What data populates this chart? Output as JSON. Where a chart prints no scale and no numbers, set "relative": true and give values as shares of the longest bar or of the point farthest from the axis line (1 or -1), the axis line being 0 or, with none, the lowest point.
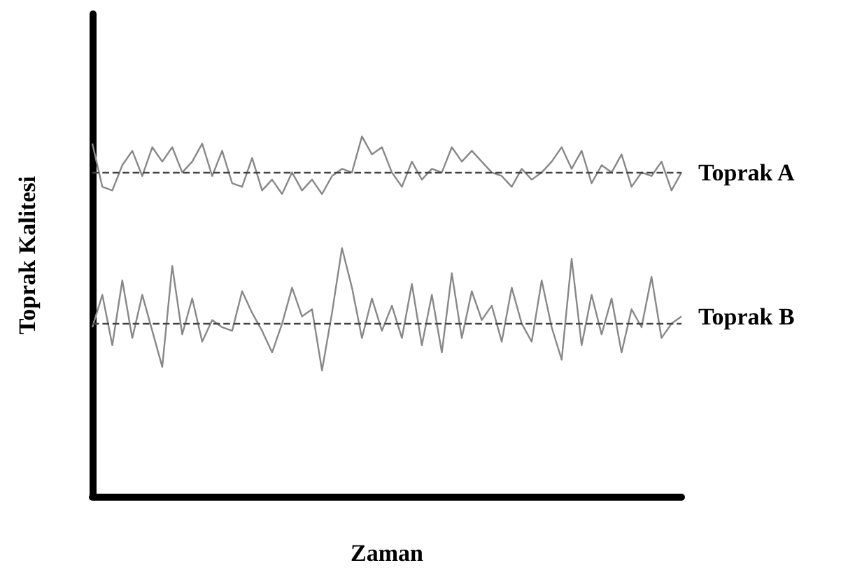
{
  "chart_data": {
    "type": "line",
    "relative": true,
    "xlabel": "Zaman",
    "ylabel": "Toprak Kalitesi",
    "categories": [
      null,
      null,
      null,
      null,
      null,
      null,
      null,
      null,
      null,
      null,
      null,
      null,
      null,
      null,
      null,
      null,
      null,
      null,
      null,
      null,
      null,
      null,
      null,
      null,
      null,
      null,
      null,
      null,
      null,
      null,
      null,
      null,
      null,
      null,
      null,
      null,
      null,
      null,
      null,
      null,
      null,
      null,
      null,
      null,
      null,
      null,
      null,
      null,
      null,
      null,
      null,
      null,
      null,
      null,
      null,
      null,
      null,
      null,
      null,
      null
    ],
    "series": [
      {
        "name": "Toprak A",
        "color": "#888888",
        "values": [
          0.98,
          0.86,
          0.85,
          0.92,
          0.96,
          0.89,
          0.97,
          0.93,
          0.97,
          0.9,
          0.93,
          0.98,
          0.89,
          0.96,
          0.87,
          0.86,
          0.94,
          0.85,
          0.88,
          0.84,
          0.9,
          0.85,
          0.88,
          0.84,
          0.89,
          0.91,
          0.9,
          1.0,
          0.95,
          0.97,
          0.9,
          0.86,
          0.93,
          0.88,
          0.91,
          0.9,
          0.97,
          0.93,
          0.96,
          0.93,
          0.9,
          0.89,
          0.86,
          0.91,
          0.88,
          0.9,
          0.93,
          0.97,
          0.91,
          0.96,
          0.87,
          0.92,
          0.9,
          0.95,
          0.86,
          0.9,
          0.89,
          0.93,
          0.85,
          0.9
        ]
      },
      {
        "name": "Toprak B",
        "color": "#888888",
        "values": [
          0.47,
          0.56,
          0.42,
          0.6,
          0.44,
          0.56,
          0.46,
          0.36,
          0.64,
          0.45,
          0.55,
          0.43,
          0.49,
          0.47,
          0.46,
          0.57,
          0.51,
          0.46,
          0.4,
          0.48,
          0.58,
          0.5,
          0.52,
          0.35,
          0.51,
          0.69,
          0.58,
          0.44,
          0.55,
          0.46,
          0.53,
          0.44,
          0.59,
          0.42,
          0.56,
          0.4,
          0.62,
          0.44,
          0.57,
          0.49,
          0.53,
          0.43,
          0.58,
          0.48,
          0.43,
          0.6,
          0.47,
          0.38,
          0.66,
          0.42,
          0.56,
          0.45,
          0.55,
          0.4,
          0.52,
          0.47,
          0.61,
          0.44,
          0.48,
          0.5
        ]
      }
    ],
    "ref_lines": [
      {
        "axis": "y",
        "value": 0.9,
        "color": "#444444",
        "line_style": "dashed"
      },
      {
        "axis": "y",
        "value": 0.48,
        "color": "#444444",
        "line_style": "dashed"
      }
    ]
  }
}
